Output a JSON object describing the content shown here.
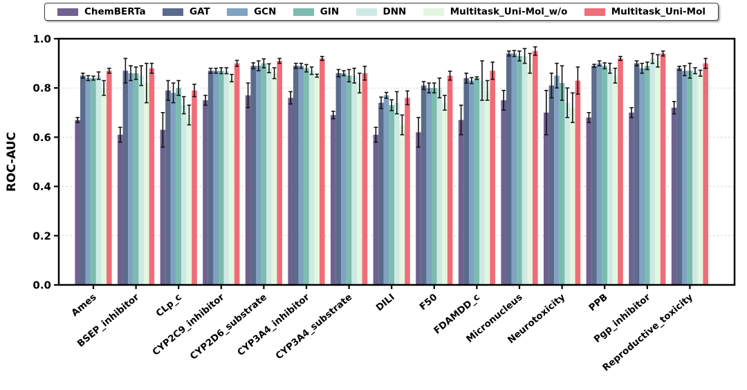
{
  "chart_data": {
    "type": "bar",
    "title": "",
    "xlabel": "",
    "ylabel": "ROC-AUC",
    "ylim": [
      0.0,
      1.0
    ],
    "yticks": [
      0.0,
      0.2,
      0.4,
      0.6,
      0.8,
      1.0
    ],
    "grid": "horizontal dashed",
    "legend_position": "top horizontal",
    "error_bars": true,
    "styles": {
      "background": "#ffffff",
      "spine_color": "#000000",
      "grid_color": "#cfcfcf",
      "errorbar_color": "#111111",
      "legend_border": "#3a3a3a"
    },
    "categories": [
      "Ames",
      "BSEP_inhibitor",
      "CLp_c",
      "CYP2C9_inhibitor",
      "CYP2D6_substrate",
      "CYP3A4_inhibitor",
      "CYP3A4_substrate",
      "DILI",
      "F50",
      "FDAMDD_c",
      "Micronucleus",
      "Neurotoxicity",
      "PPB",
      "Pgp_inhibitor",
      "Reproductive_toxicity"
    ],
    "series": [
      {
        "name": "ChemBERTa",
        "color": "#6f6190",
        "values": [
          0.67,
          0.61,
          0.63,
          0.75,
          0.77,
          0.76,
          0.69,
          0.61,
          0.62,
          0.67,
          0.75,
          0.7,
          0.68,
          0.7,
          0.72
        ],
        "errors": [
          0.01,
          0.03,
          0.07,
          0.02,
          0.05,
          0.025,
          0.015,
          0.03,
          0.06,
          0.06,
          0.04,
          0.09,
          0.02,
          0.02,
          0.025
        ]
      },
      {
        "name": "GAT",
        "color": "#5b6b8c",
        "values": [
          0.85,
          0.87,
          0.79,
          0.87,
          0.89,
          0.89,
          0.86,
          0.74,
          0.81,
          0.84,
          0.94,
          0.81,
          0.89,
          0.9,
          0.88
        ],
        "errors": [
          0.01,
          0.05,
          0.04,
          0.01,
          0.012,
          0.01,
          0.015,
          0.023,
          0.016,
          0.02,
          0.01,
          0.05,
          0.006,
          0.01,
          0.008
        ]
      },
      {
        "name": "GCN",
        "color": "#7fa3c0",
        "values": [
          0.84,
          0.86,
          0.78,
          0.87,
          0.89,
          0.89,
          0.86,
          0.77,
          0.8,
          0.83,
          0.94,
          0.85,
          0.9,
          0.88,
          0.87
        ],
        "errors": [
          0.01,
          0.03,
          0.04,
          0.01,
          0.02,
          0.01,
          0.01,
          0.012,
          0.02,
          0.012,
          0.012,
          0.05,
          0.01,
          0.02,
          0.02
        ]
      },
      {
        "name": "GIN",
        "color": "#7cbcae",
        "values": [
          0.84,
          0.86,
          0.8,
          0.87,
          0.9,
          0.88,
          0.85,
          0.73,
          0.8,
          0.84,
          0.93,
          0.82,
          0.89,
          0.89,
          0.87
        ],
        "errors": [
          0.008,
          0.025,
          0.03,
          0.012,
          0.018,
          0.015,
          0.025,
          0.022,
          0.02,
          0.005,
          0.02,
          0.07,
          0.012,
          0.015,
          0.03
        ]
      },
      {
        "name": "DNN",
        "color": "#cee9e4",
        "values": [
          0.85,
          0.85,
          0.73,
          0.87,
          0.88,
          0.87,
          0.85,
          0.74,
          0.8,
          0.83,
          0.93,
          0.74,
          0.88,
          0.92,
          0.87
        ],
        "errors": [
          0.015,
          0.04,
          0.035,
          0.012,
          0.018,
          0.015,
          0.03,
          0.045,
          0.04,
          0.08,
          0.03,
          0.06,
          0.02,
          0.02,
          0.012
        ]
      },
      {
        "name": "Multitask_Uni-Mol_w/o",
        "color": "#e3f6df",
        "values": [
          0.8,
          0.82,
          0.69,
          0.84,
          0.86,
          0.85,
          0.82,
          0.65,
          0.74,
          0.79,
          0.9,
          0.72,
          0.85,
          0.91,
          0.86
        ],
        "errors": [
          0.03,
          0.08,
          0.04,
          0.015,
          0.022,
          0.006,
          0.04,
          0.04,
          0.03,
          0.04,
          0.04,
          0.06,
          0.03,
          0.025,
          0.012
        ]
      },
      {
        "name": "Multitask_Uni-Mol",
        "color": "#f06d78",
        "values": [
          0.87,
          0.88,
          0.79,
          0.9,
          0.91,
          0.92,
          0.86,
          0.76,
          0.85,
          0.87,
          0.95,
          0.83,
          0.92,
          0.94,
          0.9
        ],
        "errors": [
          0.01,
          0.02,
          0.025,
          0.012,
          0.01,
          0.008,
          0.028,
          0.028,
          0.018,
          0.035,
          0.017,
          0.055,
          0.008,
          0.01,
          0.02
        ]
      }
    ]
  }
}
